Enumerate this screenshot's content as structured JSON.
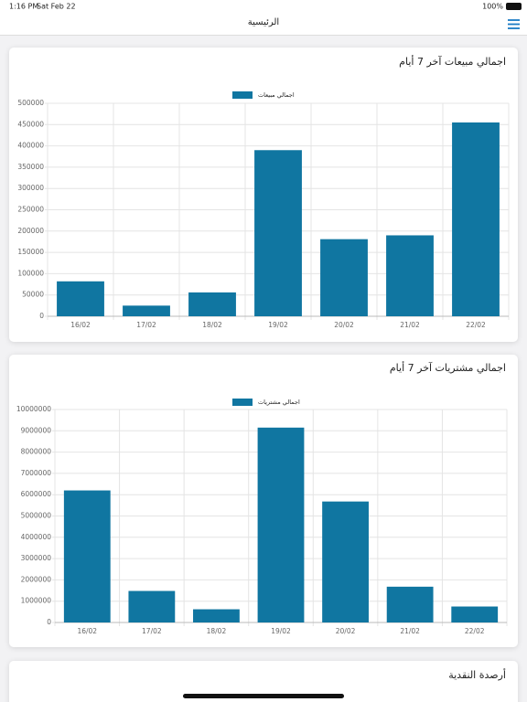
{
  "status_bar": {
    "time": "1:16 PM",
    "date": "Sat Feb 22",
    "battery": "100%"
  },
  "header": {
    "title": "الرئيسية"
  },
  "chart_data": [
    {
      "type": "bar",
      "title": "اجمالي مبيعات آخر 7 أيام",
      "categories": [
        "16/02",
        "17/02",
        "18/02",
        "19/02",
        "20/02",
        "21/02",
        "22/02"
      ],
      "series": [
        {
          "name": "اجمالي مبيعات",
          "color": "#1076a1",
          "values": [
            82000,
            25000,
            56000,
            390000,
            181000,
            190000,
            455000
          ]
        }
      ],
      "ylim": [
        0,
        500000
      ],
      "yticks": [
        0,
        50000,
        100000,
        150000,
        200000,
        250000,
        300000,
        350000,
        400000,
        450000,
        500000
      ],
      "grid": true
    },
    {
      "type": "bar",
      "title": "اجمالي مشتريات آخر 7 أيام",
      "categories": [
        "16/02",
        "17/02",
        "18/02",
        "19/02",
        "20/02",
        "21/02",
        "22/02"
      ],
      "series": [
        {
          "name": "اجمالي مشتريات",
          "color": "#1076a1",
          "values": [
            6200000,
            1480000,
            620000,
            9150000,
            5680000,
            1680000,
            750000
          ]
        }
      ],
      "ylim": [
        0,
        10000000
      ],
      "yticks": [
        0,
        1000000,
        2000000,
        3000000,
        4000000,
        5000000,
        6000000,
        7000000,
        8000000,
        9000000,
        10000000
      ],
      "grid": true
    }
  ],
  "cards": [
    {
      "title": "أرصدة النقدية"
    }
  ]
}
